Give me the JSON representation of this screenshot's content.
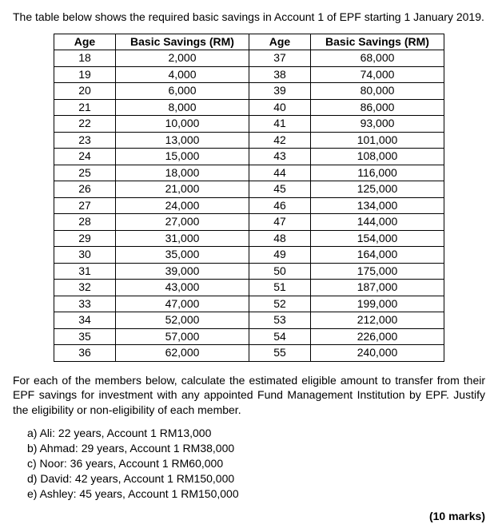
{
  "intro": "The table below shows the required basic savings in Account 1 of EPF starting 1 January 2019.",
  "headers": {
    "age": "Age",
    "savings": "Basic Savings (RM)"
  },
  "table": {
    "left": [
      {
        "age": "18",
        "savings": "2,000"
      },
      {
        "age": "19",
        "savings": "4,000"
      },
      {
        "age": "20",
        "savings": "6,000"
      },
      {
        "age": "21",
        "savings": "8,000"
      },
      {
        "age": "22",
        "savings": "10,000"
      },
      {
        "age": "23",
        "savings": "13,000"
      },
      {
        "age": "24",
        "savings": "15,000"
      },
      {
        "age": "25",
        "savings": "18,000"
      },
      {
        "age": "26",
        "savings": "21,000"
      },
      {
        "age": "27",
        "savings": "24,000"
      },
      {
        "age": "28",
        "savings": "27,000"
      },
      {
        "age": "29",
        "savings": "31,000"
      },
      {
        "age": "30",
        "savings": "35,000"
      },
      {
        "age": "31",
        "savings": "39,000"
      },
      {
        "age": "32",
        "savings": "43,000"
      },
      {
        "age": "33",
        "savings": "47,000"
      },
      {
        "age": "34",
        "savings": "52,000"
      },
      {
        "age": "35",
        "savings": "57,000"
      },
      {
        "age": "36",
        "savings": "62,000"
      }
    ],
    "right": [
      {
        "age": "37",
        "savings": "68,000"
      },
      {
        "age": "38",
        "savings": "74,000"
      },
      {
        "age": "39",
        "savings": "80,000"
      },
      {
        "age": "40",
        "savings": "86,000"
      },
      {
        "age": "41",
        "savings": "93,000"
      },
      {
        "age": "42",
        "savings": "101,000"
      },
      {
        "age": "43",
        "savings": "108,000"
      },
      {
        "age": "44",
        "savings": "116,000"
      },
      {
        "age": "45",
        "savings": "125,000"
      },
      {
        "age": "46",
        "savings": "134,000"
      },
      {
        "age": "47",
        "savings": "144,000"
      },
      {
        "age": "48",
        "savings": "154,000"
      },
      {
        "age": "49",
        "savings": "164,000"
      },
      {
        "age": "50",
        "savings": "175,000"
      },
      {
        "age": "51",
        "savings": "187,000"
      },
      {
        "age": "52",
        "savings": "199,000"
      },
      {
        "age": "53",
        "savings": "212,000"
      },
      {
        "age": "54",
        "savings": "226,000"
      },
      {
        "age": "55",
        "savings": "240,000"
      }
    ]
  },
  "instructions": "For each of the members below, calculate the estimated eligible amount to transfer from their EPF savings for investment with any appointed Fund Management Institution by EPF. Justify the eligibility or non-eligibility of each member.",
  "members": [
    "a)  Ali: 22 years, Account 1 RM13,000",
    "b)  Ahmad: 29 years, Account 1 RM38,000",
    "c)  Noor: 36 years, Account 1 RM60,000",
    "d)  David: 42 years, Account 1 RM150,000",
    "e)  Ashley: 45 years, Account 1 RM150,000"
  ],
  "marks": "(10 marks)"
}
